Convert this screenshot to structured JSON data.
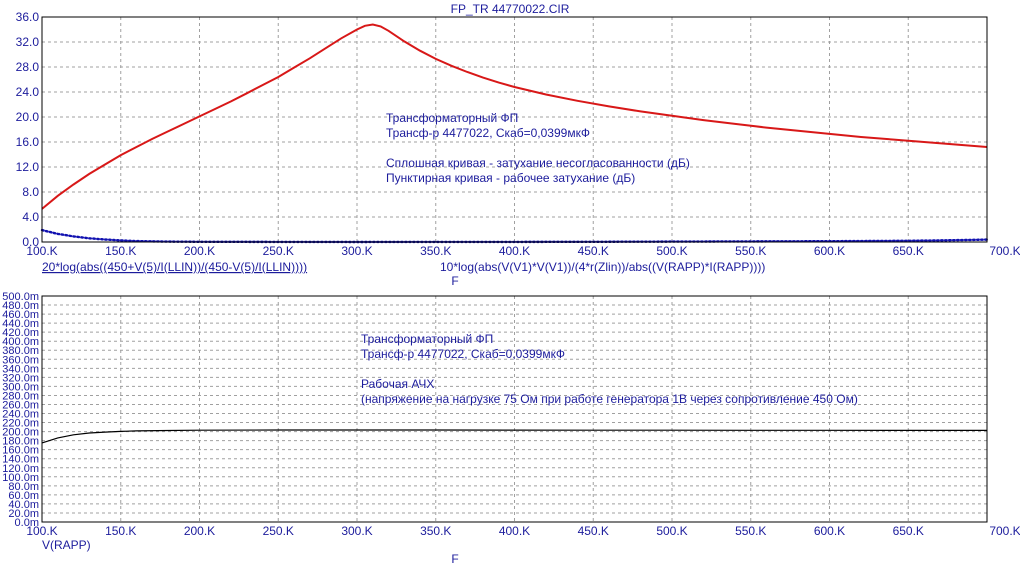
{
  "window": {
    "title": "FP_TR 44770022.CIR"
  },
  "colors": {
    "text": "#1c1c9c",
    "grid": "#a0a0a0",
    "axis": "#000000",
    "red": "#d81818",
    "blue": "#1010b0",
    "black": "#000000"
  },
  "chart_data": [
    {
      "type": "line",
      "xlim": [
        100000,
        700000
      ],
      "ylim": [
        0,
        36
      ],
      "grid": true,
      "xticks": [
        "100.K",
        "150.K",
        "200.K",
        "250.K",
        "300.K",
        "350.K",
        "400.K",
        "450.K",
        "500.K",
        "550.K",
        "600.K",
        "650.K",
        "700.K"
      ],
      "yticks": [
        "0.0",
        "4.0",
        "8.0",
        "12.0",
        "16.0",
        "20.0",
        "24.0",
        "28.0",
        "32.0",
        "36.0"
      ],
      "xlabel": "F",
      "series": [
        {
          "name": "20*log(abs((450+V(5)/I(LLIN))/(450-V(5)/I(LLIN))))",
          "style": "solid",
          "color": "red",
          "x": [
            100000,
            110000,
            120000,
            130000,
            140000,
            150000,
            160000,
            170000,
            180000,
            190000,
            200000,
            210000,
            220000,
            230000,
            240000,
            250000,
            260000,
            270000,
            280000,
            290000,
            300000,
            305000,
            310000,
            315000,
            320000,
            330000,
            340000,
            350000,
            360000,
            370000,
            380000,
            390000,
            400000,
            420000,
            440000,
            460000,
            480000,
            500000,
            520000,
            540000,
            560000,
            580000,
            600000,
            620000,
            640000,
            660000,
            680000,
            700000
          ],
          "y": [
            5.3,
            7.4,
            9.2,
            10.9,
            12.4,
            13.9,
            15.2,
            16.5,
            17.7,
            18.9,
            20.1,
            21.3,
            22.5,
            23.8,
            25.1,
            26.4,
            27.9,
            29.4,
            31.0,
            32.6,
            34.0,
            34.6,
            34.8,
            34.5,
            33.8,
            32.1,
            30.6,
            29.3,
            28.2,
            27.2,
            26.3,
            25.5,
            24.8,
            23.6,
            22.6,
            21.7,
            20.9,
            20.2,
            19.5,
            18.9,
            18.3,
            17.8,
            17.3,
            16.8,
            16.4,
            16.0,
            15.6,
            15.2
          ]
        },
        {
          "name": "10*log(abs(V(V1)*V(V1))/(4*r(Zlin))/abs((V(RAPP)*I(RAPP))))",
          "style": "dotted",
          "color": "blue",
          "x": [
            100000,
            110000,
            120000,
            130000,
            140000,
            150000,
            160000,
            180000,
            200000,
            250000,
            300000,
            350000,
            400000,
            450000,
            500000,
            550000,
            600000,
            650000,
            670000,
            690000,
            700000
          ],
          "y": [
            1.9,
            1.3,
            0.9,
            0.6,
            0.4,
            0.25,
            0.15,
            0.07,
            0.03,
            0.01,
            0.005,
            0.01,
            0.02,
            0.04,
            0.06,
            0.09,
            0.13,
            0.2,
            0.25,
            0.33,
            0.38
          ]
        }
      ],
      "annotations": [
        "Трансформаторный ФП",
        "Трансф-р 4477022, Скаб=0,0399мкФ",
        "Сплошная кривая - затухание несогласованности (дБ)",
        "Пунктирная кривая - рабочее затухание (дБ)"
      ]
    },
    {
      "type": "line",
      "xlim": [
        100000,
        700000
      ],
      "ylim": [
        0,
        500
      ],
      "grid": true,
      "xticks": [
        "100.K",
        "150.K",
        "200.K",
        "250.K",
        "300.K",
        "350.K",
        "400.K",
        "450.K",
        "500.K",
        "550.K",
        "600.K",
        "650.K",
        "700.K"
      ],
      "yticks": [
        "0.0m",
        "20.0m",
        "40.0m",
        "60.0m",
        "80.0m",
        "100.0m",
        "120.0m",
        "140.0m",
        "160.0m",
        "180.0m",
        "200.0m",
        "220.0m",
        "240.0m",
        "260.0m",
        "280.0m",
        "300.0m",
        "320.0m",
        "340.0m",
        "360.0m",
        "380.0m",
        "400.0m",
        "420.0m",
        "440.0m",
        "460.0m",
        "480.0m",
        "500.0m"
      ],
      "xlabel": "F",
      "series": [
        {
          "name": "V(RAPP)",
          "style": "solid",
          "color": "black",
          "x": [
            100000,
            110000,
            120000,
            130000,
            140000,
            150000,
            160000,
            180000,
            200000,
            250000,
            300000,
            350000,
            400000,
            450000,
            500000,
            550000,
            600000,
            650000,
            700000
          ],
          "y": [
            175,
            186,
            193,
            197,
            199,
            200.5,
            201.5,
            202.5,
            203,
            203.5,
            203.5,
            203.5,
            203.3,
            203.2,
            203,
            202.9,
            202.8,
            202.7,
            202.6
          ]
        }
      ],
      "annotations": [
        "Трансформаторный ФП",
        "Трансф-р 4477022, Скаб=0,0399мкФ",
        "Рабочая АЧХ",
        "(напряжение на нагрузке 75 Ом при работе генератора 1В через сопротивление 450 Ом)"
      ]
    }
  ]
}
